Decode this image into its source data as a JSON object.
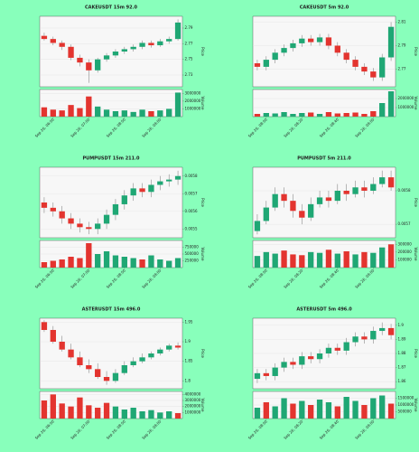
{
  "chart_data": [
    {
      "type": "candlestick",
      "title": "CAKEUSDT 15m 92.0",
      "ylabel": "Price",
      "vlabel": "Volume",
      "up_color": "#1fa774",
      "down_color": "#e3342f",
      "grid": true,
      "open": [
        2.78,
        2.776,
        2.771,
        2.766,
        2.752,
        2.746,
        2.736,
        2.75,
        2.755,
        2.76,
        2.763,
        2.766,
        2.771,
        2.768,
        2.773,
        2.776
      ],
      "close": [
        2.776,
        2.771,
        2.766,
        2.752,
        2.746,
        2.736,
        2.75,
        2.755,
        2.76,
        2.763,
        2.766,
        2.771,
        2.768,
        2.773,
        2.776,
        2.797
      ],
      "high": [
        2.784,
        2.779,
        2.774,
        2.769,
        2.756,
        2.75,
        2.752,
        2.758,
        2.763,
        2.766,
        2.769,
        2.774,
        2.774,
        2.776,
        2.779,
        2.801
      ],
      "low": [
        2.774,
        2.768,
        2.762,
        2.749,
        2.741,
        2.72,
        2.733,
        2.747,
        2.752,
        2.757,
        2.76,
        2.763,
        2.765,
        2.766,
        2.77,
        2.774
      ],
      "volume": [
        1200000,
        900000,
        800000,
        1500000,
        1100000,
        2600000,
        1300000,
        900000,
        700000,
        800000,
        600000,
        900000,
        700000,
        800000,
        1000000,
        3100000
      ],
      "ylim": [
        2.715,
        2.805
      ],
      "yticks": [
        2.73,
        2.75,
        2.77,
        2.79
      ],
      "vlim": [
        0,
        3500000
      ],
      "vticks": [
        1000000,
        2000000,
        3000000
      ],
      "xticks": [
        {
          "value": 1,
          "label": "Sep 26, 06:00"
        },
        {
          "value": 5,
          "label": "Sep 26, 07:00"
        },
        {
          "value": 9,
          "label": "Sep 26, 08:00"
        },
        {
          "value": 13,
          "label": "Sep 26, 09:00"
        }
      ]
    },
    {
      "type": "candlestick",
      "title": "CAKEUSDT 5m 92.0",
      "ylabel": "Price",
      "vlabel": "Volume",
      "up_color": "#1fa774",
      "down_color": "#e3342f",
      "grid": true,
      "open": [
        2.775,
        2.772,
        2.778,
        2.784,
        2.788,
        2.792,
        2.796,
        2.793,
        2.797,
        2.79,
        2.784,
        2.778,
        2.772,
        2.768,
        2.763,
        2.78
      ],
      "close": [
        2.772,
        2.778,
        2.784,
        2.788,
        2.792,
        2.796,
        2.793,
        2.797,
        2.79,
        2.784,
        2.778,
        2.772,
        2.768,
        2.763,
        2.78,
        2.806
      ],
      "high": [
        2.778,
        2.781,
        2.787,
        2.791,
        2.795,
        2.799,
        2.799,
        2.8,
        2.8,
        2.793,
        2.787,
        2.781,
        2.775,
        2.771,
        2.783,
        2.81
      ],
      "low": [
        2.769,
        2.769,
        2.775,
        2.781,
        2.785,
        2.789,
        2.79,
        2.79,
        2.787,
        2.781,
        2.775,
        2.769,
        2.765,
        2.76,
        2.76,
        2.777
      ],
      "volume": [
        300000,
        400000,
        350000,
        500000,
        300000,
        400000,
        450000,
        300000,
        500000,
        350000,
        400000,
        450000,
        300000,
        600000,
        1500000,
        2800000
      ],
      "ylim": [
        2.755,
        2.815
      ],
      "yticks": [
        2.77,
        2.79,
        2.81
      ],
      "vlim": [
        0,
        3000000
      ],
      "vticks": [
        1000000,
        2000000
      ],
      "xticks": [
        {
          "value": 1,
          "label": "Sep 26, 08:00"
        },
        {
          "value": 5,
          "label": "Sep 26, 08:20"
        },
        {
          "value": 9,
          "label": "Sep 26, 08:40"
        },
        {
          "value": 13,
          "label": "Sep 26, 09:00"
        }
      ]
    },
    {
      "type": "candlestick",
      "title": "PUMPUSDT 15m 211.0",
      "ylabel": "Price",
      "vlabel": "Volume",
      "up_color": "#1fa774",
      "down_color": "#e3342f",
      "grid": true,
      "open": [
        0.00565,
        0.00562,
        0.0056,
        0.00556,
        0.00553,
        0.00551,
        0.0055,
        0.00553,
        0.00558,
        0.00564,
        0.00569,
        0.00573,
        0.00571,
        0.00575,
        0.00577,
        0.00578
      ],
      "close": [
        0.00562,
        0.0056,
        0.00556,
        0.00553,
        0.00551,
        0.0055,
        0.00553,
        0.00558,
        0.00564,
        0.00569,
        0.00573,
        0.00571,
        0.00575,
        0.00577,
        0.00578,
        0.0058
      ],
      "high": [
        0.00568,
        0.00565,
        0.00563,
        0.00559,
        0.00556,
        0.00554,
        0.00556,
        0.00561,
        0.00567,
        0.00572,
        0.00576,
        0.00576,
        0.00578,
        0.0058,
        0.00581,
        0.00583
      ],
      "low": [
        0.00559,
        0.00557,
        0.00553,
        0.0055,
        0.00548,
        0.00547,
        0.00547,
        0.0055,
        0.00555,
        0.00561,
        0.00566,
        0.00568,
        0.00568,
        0.00572,
        0.00574,
        0.00575
      ],
      "volume": [
        200000,
        250000,
        300000,
        400000,
        350000,
        900000,
        500000,
        600000,
        450000,
        400000,
        350000,
        300000,
        450000,
        300000,
        250000,
        350000
      ],
      "ylim": [
        0.00545,
        0.00585
      ],
      "yticks": [
        0.0055,
        0.0056,
        0.0057,
        0.0058
      ],
      "vlim": [
        0,
        1000000
      ],
      "vticks": [
        250000,
        500000,
        750000
      ],
      "xticks": [
        {
          "value": 1,
          "label": "Sep 26, 06:00"
        },
        {
          "value": 5,
          "label": "Sep 26, 07:00"
        },
        {
          "value": 9,
          "label": "Sep 26, 08:00"
        },
        {
          "value": 13,
          "label": "Sep 26, 09:00"
        }
      ]
    },
    {
      "type": "candlestick",
      "title": "PUMPUSDT 5m 211.0",
      "ylabel": "Price",
      "vlabel": "Volume",
      "up_color": "#1fa774",
      "down_color": "#e3342f",
      "grid": true,
      "open": [
        0.00568,
        0.00571,
        0.00575,
        0.00579,
        0.00577,
        0.00574,
        0.00572,
        0.00576,
        0.00578,
        0.00577,
        0.0058,
        0.00579,
        0.00581,
        0.0058,
        0.00582,
        0.00584
      ],
      "close": [
        0.00571,
        0.00575,
        0.00579,
        0.00577,
        0.00574,
        0.00572,
        0.00576,
        0.00578,
        0.00577,
        0.0058,
        0.00579,
        0.00581,
        0.0058,
        0.00582,
        0.00584,
        0.00581
      ],
      "high": [
        0.00573,
        0.00577,
        0.00581,
        0.00581,
        0.00579,
        0.00576,
        0.00578,
        0.0058,
        0.0058,
        0.00582,
        0.00582,
        0.00583,
        0.00583,
        0.00584,
        0.00586,
        0.00586
      ],
      "low": [
        0.00567,
        0.0057,
        0.00574,
        0.00575,
        0.00572,
        0.0057,
        0.00571,
        0.00575,
        0.00575,
        0.00576,
        0.00577,
        0.00578,
        0.00578,
        0.00579,
        0.00581,
        0.0058
      ],
      "volume": [
        150000,
        200000,
        180000,
        220000,
        170000,
        160000,
        200000,
        190000,
        230000,
        180000,
        210000,
        170000,
        200000,
        190000,
        260000,
        300000
      ],
      "ylim": [
        0.00566,
        0.00587
      ],
      "yticks": [
        0.0057,
        0.0058
      ],
      "vlim": [
        0,
        350000
      ],
      "vticks": [
        100000,
        200000,
        300000
      ],
      "xticks": [
        {
          "value": 1,
          "label": "Sep 26, 08:00"
        },
        {
          "value": 5,
          "label": "Sep 26, 08:20"
        },
        {
          "value": 9,
          "label": "Sep 26, 08:40"
        },
        {
          "value": 13,
          "label": "Sep 26, 09:00"
        }
      ]
    },
    {
      "type": "candlestick",
      "title": "ASTERUSDT 15m 496.0",
      "ylabel": "Price",
      "vlabel": "Volume",
      "up_color": "#1fa774",
      "down_color": "#e3342f",
      "grid": true,
      "open": [
        1.95,
        1.93,
        1.9,
        1.88,
        1.86,
        1.84,
        1.83,
        1.81,
        1.8,
        1.82,
        1.84,
        1.85,
        1.86,
        1.87,
        1.88,
        1.89
      ],
      "close": [
        1.93,
        1.9,
        1.88,
        1.86,
        1.84,
        1.83,
        1.81,
        1.8,
        1.82,
        1.84,
        1.85,
        1.86,
        1.87,
        1.88,
        1.89,
        1.885
      ],
      "high": [
        1.955,
        1.94,
        1.915,
        1.895,
        1.875,
        1.855,
        1.845,
        1.825,
        1.83,
        1.85,
        1.86,
        1.87,
        1.875,
        1.885,
        1.895,
        1.898
      ],
      "low": [
        1.925,
        1.895,
        1.875,
        1.855,
        1.835,
        1.82,
        1.805,
        1.79,
        1.795,
        1.815,
        1.835,
        1.845,
        1.855,
        1.865,
        1.875,
        1.88
      ],
      "volume": [
        3000000,
        4000000,
        2500000,
        2000000,
        3500000,
        2200000,
        1800000,
        2600000,
        2000000,
        1500000,
        1800000,
        1200000,
        1400000,
        1000000,
        1200000,
        900000
      ],
      "ylim": [
        1.78,
        1.96
      ],
      "yticks": [
        1.8,
        1.85,
        1.9,
        1.95
      ],
      "vlim": [
        0,
        4500000
      ],
      "vticks": [
        1000000,
        2000000,
        3000000,
        4000000
      ],
      "xticks": [
        {
          "value": 1,
          "label": "Sep 26, 06:00"
        },
        {
          "value": 5,
          "label": "Sep 26, 07:00"
        },
        {
          "value": 9,
          "label": "Sep 26, 08:00"
        },
        {
          "value": 13,
          "label": "Sep 26, 09:00"
        }
      ]
    },
    {
      "type": "candlestick",
      "title": "ASTERUSDT 5m 496.0",
      "ylabel": "Price",
      "vlabel": "Volume",
      "up_color": "#1fa774",
      "down_color": "#e3342f",
      "grid": true,
      "open": [
        1.862,
        1.866,
        1.864,
        1.87,
        1.874,
        1.872,
        1.878,
        1.876,
        1.88,
        1.884,
        1.882,
        1.888,
        1.892,
        1.89,
        1.896,
        1.898
      ],
      "close": [
        1.866,
        1.864,
        1.87,
        1.874,
        1.872,
        1.878,
        1.876,
        1.88,
        1.884,
        1.882,
        1.888,
        1.892,
        1.89,
        1.896,
        1.898,
        1.893
      ],
      "high": [
        1.869,
        1.869,
        1.873,
        1.877,
        1.877,
        1.881,
        1.881,
        1.883,
        1.887,
        1.887,
        1.891,
        1.895,
        1.895,
        1.899,
        1.902,
        1.901
      ],
      "low": [
        1.859,
        1.861,
        1.861,
        1.867,
        1.869,
        1.869,
        1.873,
        1.873,
        1.877,
        1.879,
        1.879,
        1.885,
        1.887,
        1.887,
        1.893,
        1.89
      ],
      "volume": [
        800000,
        1200000,
        900000,
        1500000,
        1100000,
        1300000,
        1000000,
        1400000,
        1200000,
        900000,
        1600000,
        1300000,
        1000000,
        1500000,
        1700000,
        1100000
      ],
      "ylim": [
        1.855,
        1.905
      ],
      "yticks": [
        1.86,
        1.87,
        1.88,
        1.89,
        1.9
      ],
      "vlim": [
        0,
        2000000
      ],
      "vticks": [
        500000,
        1000000,
        1500000
      ],
      "xticks": [
        {
          "value": 1,
          "label": "Sep 26, 08:00"
        },
        {
          "value": 5,
          "label": "Sep 26, 08:20"
        },
        {
          "value": 9,
          "label": "Sep 26, 08:40"
        },
        {
          "value": 13,
          "label": "Sep 26, 09:00"
        }
      ]
    }
  ]
}
